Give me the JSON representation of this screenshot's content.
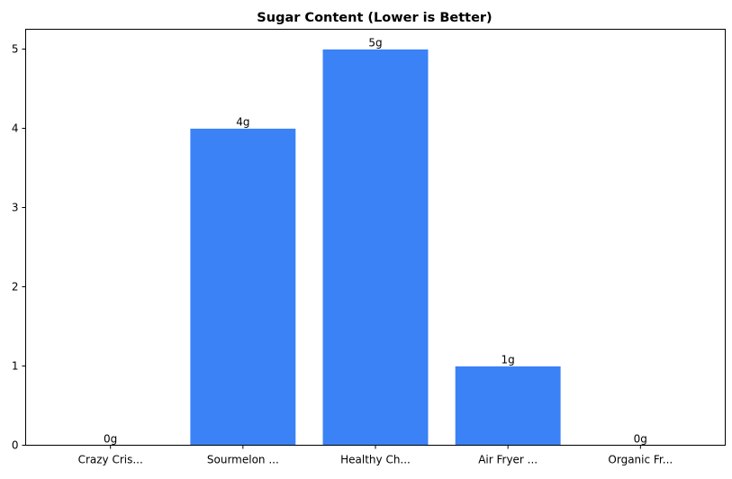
{
  "chart_data": {
    "type": "bar",
    "title": "Sugar Content (Lower is Better)",
    "xlabel": "",
    "ylabel": "",
    "categories": [
      "Crazy Cris...",
      "Sourmelon ...",
      "Healthy Ch...",
      "Air Fryer ...",
      "Organic Fr..."
    ],
    "values": [
      0,
      4,
      5,
      1,
      0
    ],
    "data_labels": [
      "0g",
      "4g",
      "5g",
      "1g",
      "0g"
    ],
    "ylim": [
      0,
      5.25
    ],
    "yticks": [
      0,
      1,
      2,
      3,
      4,
      5
    ],
    "grid": false,
    "bar_color": "#3b82f6",
    "bar_edge_color": "#ffffff"
  }
}
